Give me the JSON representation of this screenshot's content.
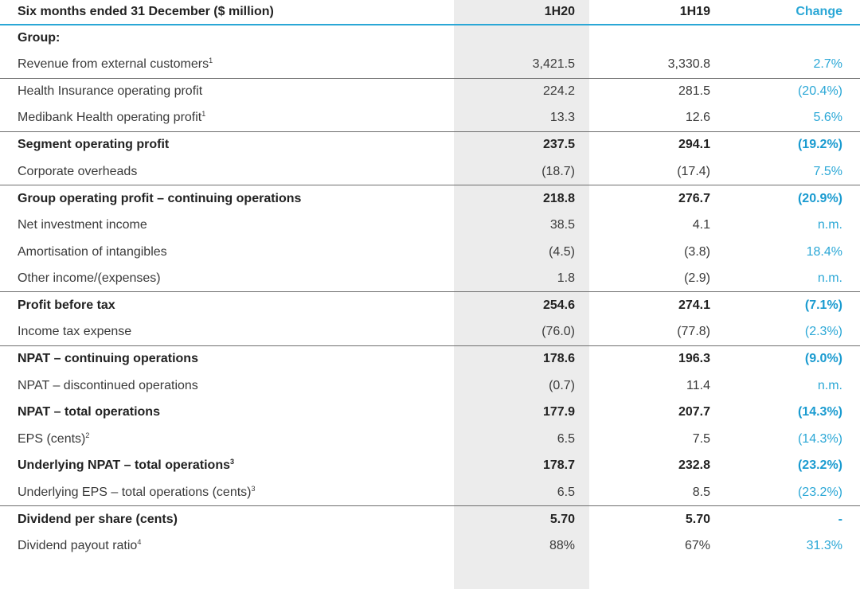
{
  "header": {
    "label": "Six months ended 31 December ($ million)",
    "col1": "1H20",
    "col2": "1H19",
    "col3": "Change"
  },
  "rows": [
    {
      "label": "Group:",
      "sup": "",
      "a": "",
      "b": "",
      "c": "",
      "bold": true,
      "sep": false
    },
    {
      "label": "Revenue from external customers",
      "sup": "1",
      "a": "3,421.5",
      "b": "3,330.8",
      "c": "2.7%",
      "bold": false,
      "sep": false
    },
    {
      "label": "Health Insurance operating profit",
      "sup": "",
      "a": "224.2",
      "b": "281.5",
      "c": "(20.4%)",
      "bold": false,
      "sep": true
    },
    {
      "label": "Medibank Health operating profit",
      "sup": "1",
      "a": "13.3",
      "b": "12.6",
      "c": "5.6%",
      "bold": false,
      "sep": false
    },
    {
      "label": "Segment operating profit",
      "sup": "",
      "a": "237.5",
      "b": "294.1",
      "c": "(19.2%)",
      "bold": true,
      "sep": true
    },
    {
      "label": "Corporate overheads",
      "sup": "",
      "a": "(18.7)",
      "b": "(17.4)",
      "c": "7.5%",
      "bold": false,
      "sep": false
    },
    {
      "label": "Group operating profit – continuing operations",
      "sup": "",
      "a": "218.8",
      "b": "276.7",
      "c": "(20.9%)",
      "bold": true,
      "sep": true
    },
    {
      "label": "Net investment income",
      "sup": "",
      "a": "38.5",
      "b": "4.1",
      "c": "n.m.",
      "bold": false,
      "sep": false
    },
    {
      "label": "Amortisation of intangibles",
      "sup": "",
      "a": "(4.5)",
      "b": "(3.8)",
      "c": "18.4%",
      "bold": false,
      "sep": false
    },
    {
      "label": "Other income/(expenses)",
      "sup": "",
      "a": "1.8",
      "b": "(2.9)",
      "c": "n.m.",
      "bold": false,
      "sep": false
    },
    {
      "label": "Profit before tax",
      "sup": "",
      "a": "254.6",
      "b": "274.1",
      "c": "(7.1%)",
      "bold": true,
      "sep": true
    },
    {
      "label": "Income tax expense",
      "sup": "",
      "a": "(76.0)",
      "b": "(77.8)",
      "c": "(2.3%)",
      "bold": false,
      "sep": false
    },
    {
      "label": "NPAT – continuing operations",
      "sup": "",
      "a": "178.6",
      "b": "196.3",
      "c": "(9.0%)",
      "bold": true,
      "sep": true
    },
    {
      "label": "NPAT – discontinued operations",
      "sup": "",
      "a": "(0.7)",
      "b": "11.4",
      "c": "n.m.",
      "bold": false,
      "sep": false
    },
    {
      "label": "NPAT – total operations",
      "sup": "",
      "a": "177.9",
      "b": "207.7",
      "c": "(14.3%)",
      "bold": true,
      "sep": false
    },
    {
      "label": "EPS (cents)",
      "sup": "2",
      "a": "6.5",
      "b": "7.5",
      "c": "(14.3%)",
      "bold": false,
      "sep": false
    },
    {
      "label": "Underlying NPAT – total operations",
      "sup": "3",
      "a": "178.7",
      "b": "232.8",
      "c": "(23.2%)",
      "bold": true,
      "sep": false
    },
    {
      "label": "Underlying EPS – total operations (cents)",
      "sup": "3",
      "a": "6.5",
      "b": "8.5",
      "c": "(23.2%)",
      "bold": false,
      "sep": false
    },
    {
      "label": "Dividend per share (cents)",
      "sup": "",
      "a": "5.70",
      "b": "5.70",
      "c": "-",
      "bold": true,
      "sep": true
    },
    {
      "label": "Dividend payout ratio",
      "sup": "4",
      "a": "88%",
      "b": "67%",
      "c": "31.3%",
      "bold": false,
      "sep": false
    }
  ]
}
